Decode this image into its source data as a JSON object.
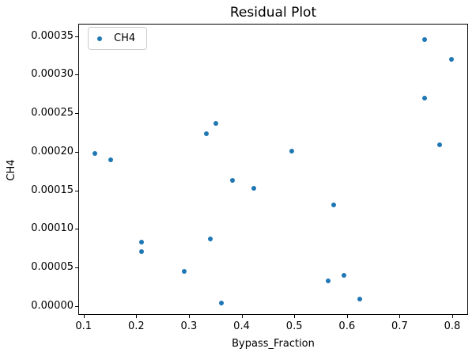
{
  "chart_data": {
    "type": "scatter",
    "title": "Residual Plot",
    "xlabel": "Bypass_Fraction",
    "ylabel": "CH4",
    "grid": false,
    "legend_position": "upper left",
    "xlim": [
      0.09,
      0.83
    ],
    "ylim": [
      -1.16e-05,
      0.000366
    ],
    "x_ticks": [
      0.1,
      0.2,
      0.3,
      0.4,
      0.5,
      0.6,
      0.7,
      0.8
    ],
    "x_tick_labels": [
      "0.1",
      "0.2",
      "0.3",
      "0.4",
      "0.5",
      "0.6",
      "0.7",
      "0.8"
    ],
    "y_ticks": [
      0.0,
      5e-05,
      0.0001,
      0.00015,
      0.0002,
      0.00025,
      0.0003,
      0.00035
    ],
    "y_tick_labels": [
      "0.00000",
      "0.00005",
      "0.00010",
      "0.00015",
      "0.00020",
      "0.00025",
      "0.00030",
      "0.00035"
    ],
    "series": [
      {
        "name": "CH4",
        "color": "#1f77b4",
        "points": [
          [
            0.121,
            0.000198
          ],
          [
            0.151,
            0.00019
          ],
          [
            0.21,
            8.3e-05
          ],
          [
            0.21,
            7.1e-05
          ],
          [
            0.291,
            4.5e-05
          ],
          [
            0.333,
            0.000223
          ],
          [
            0.351,
            0.000237
          ],
          [
            0.341,
            8.7e-05
          ],
          [
            0.361,
            4e-06
          ],
          [
            0.383,
            0.000163
          ],
          [
            0.423,
            0.000153
          ],
          [
            0.496,
            0.000201
          ],
          [
            0.575,
            0.000131
          ],
          [
            0.565,
            3.3e-05
          ],
          [
            0.594,
            4e-05
          ],
          [
            0.625,
            9e-06
          ],
          [
            0.747,
            0.000345
          ],
          [
            0.798,
            0.00032
          ],
          [
            0.747,
            0.00027
          ],
          [
            0.776,
            0.000209
          ]
        ]
      }
    ]
  }
}
